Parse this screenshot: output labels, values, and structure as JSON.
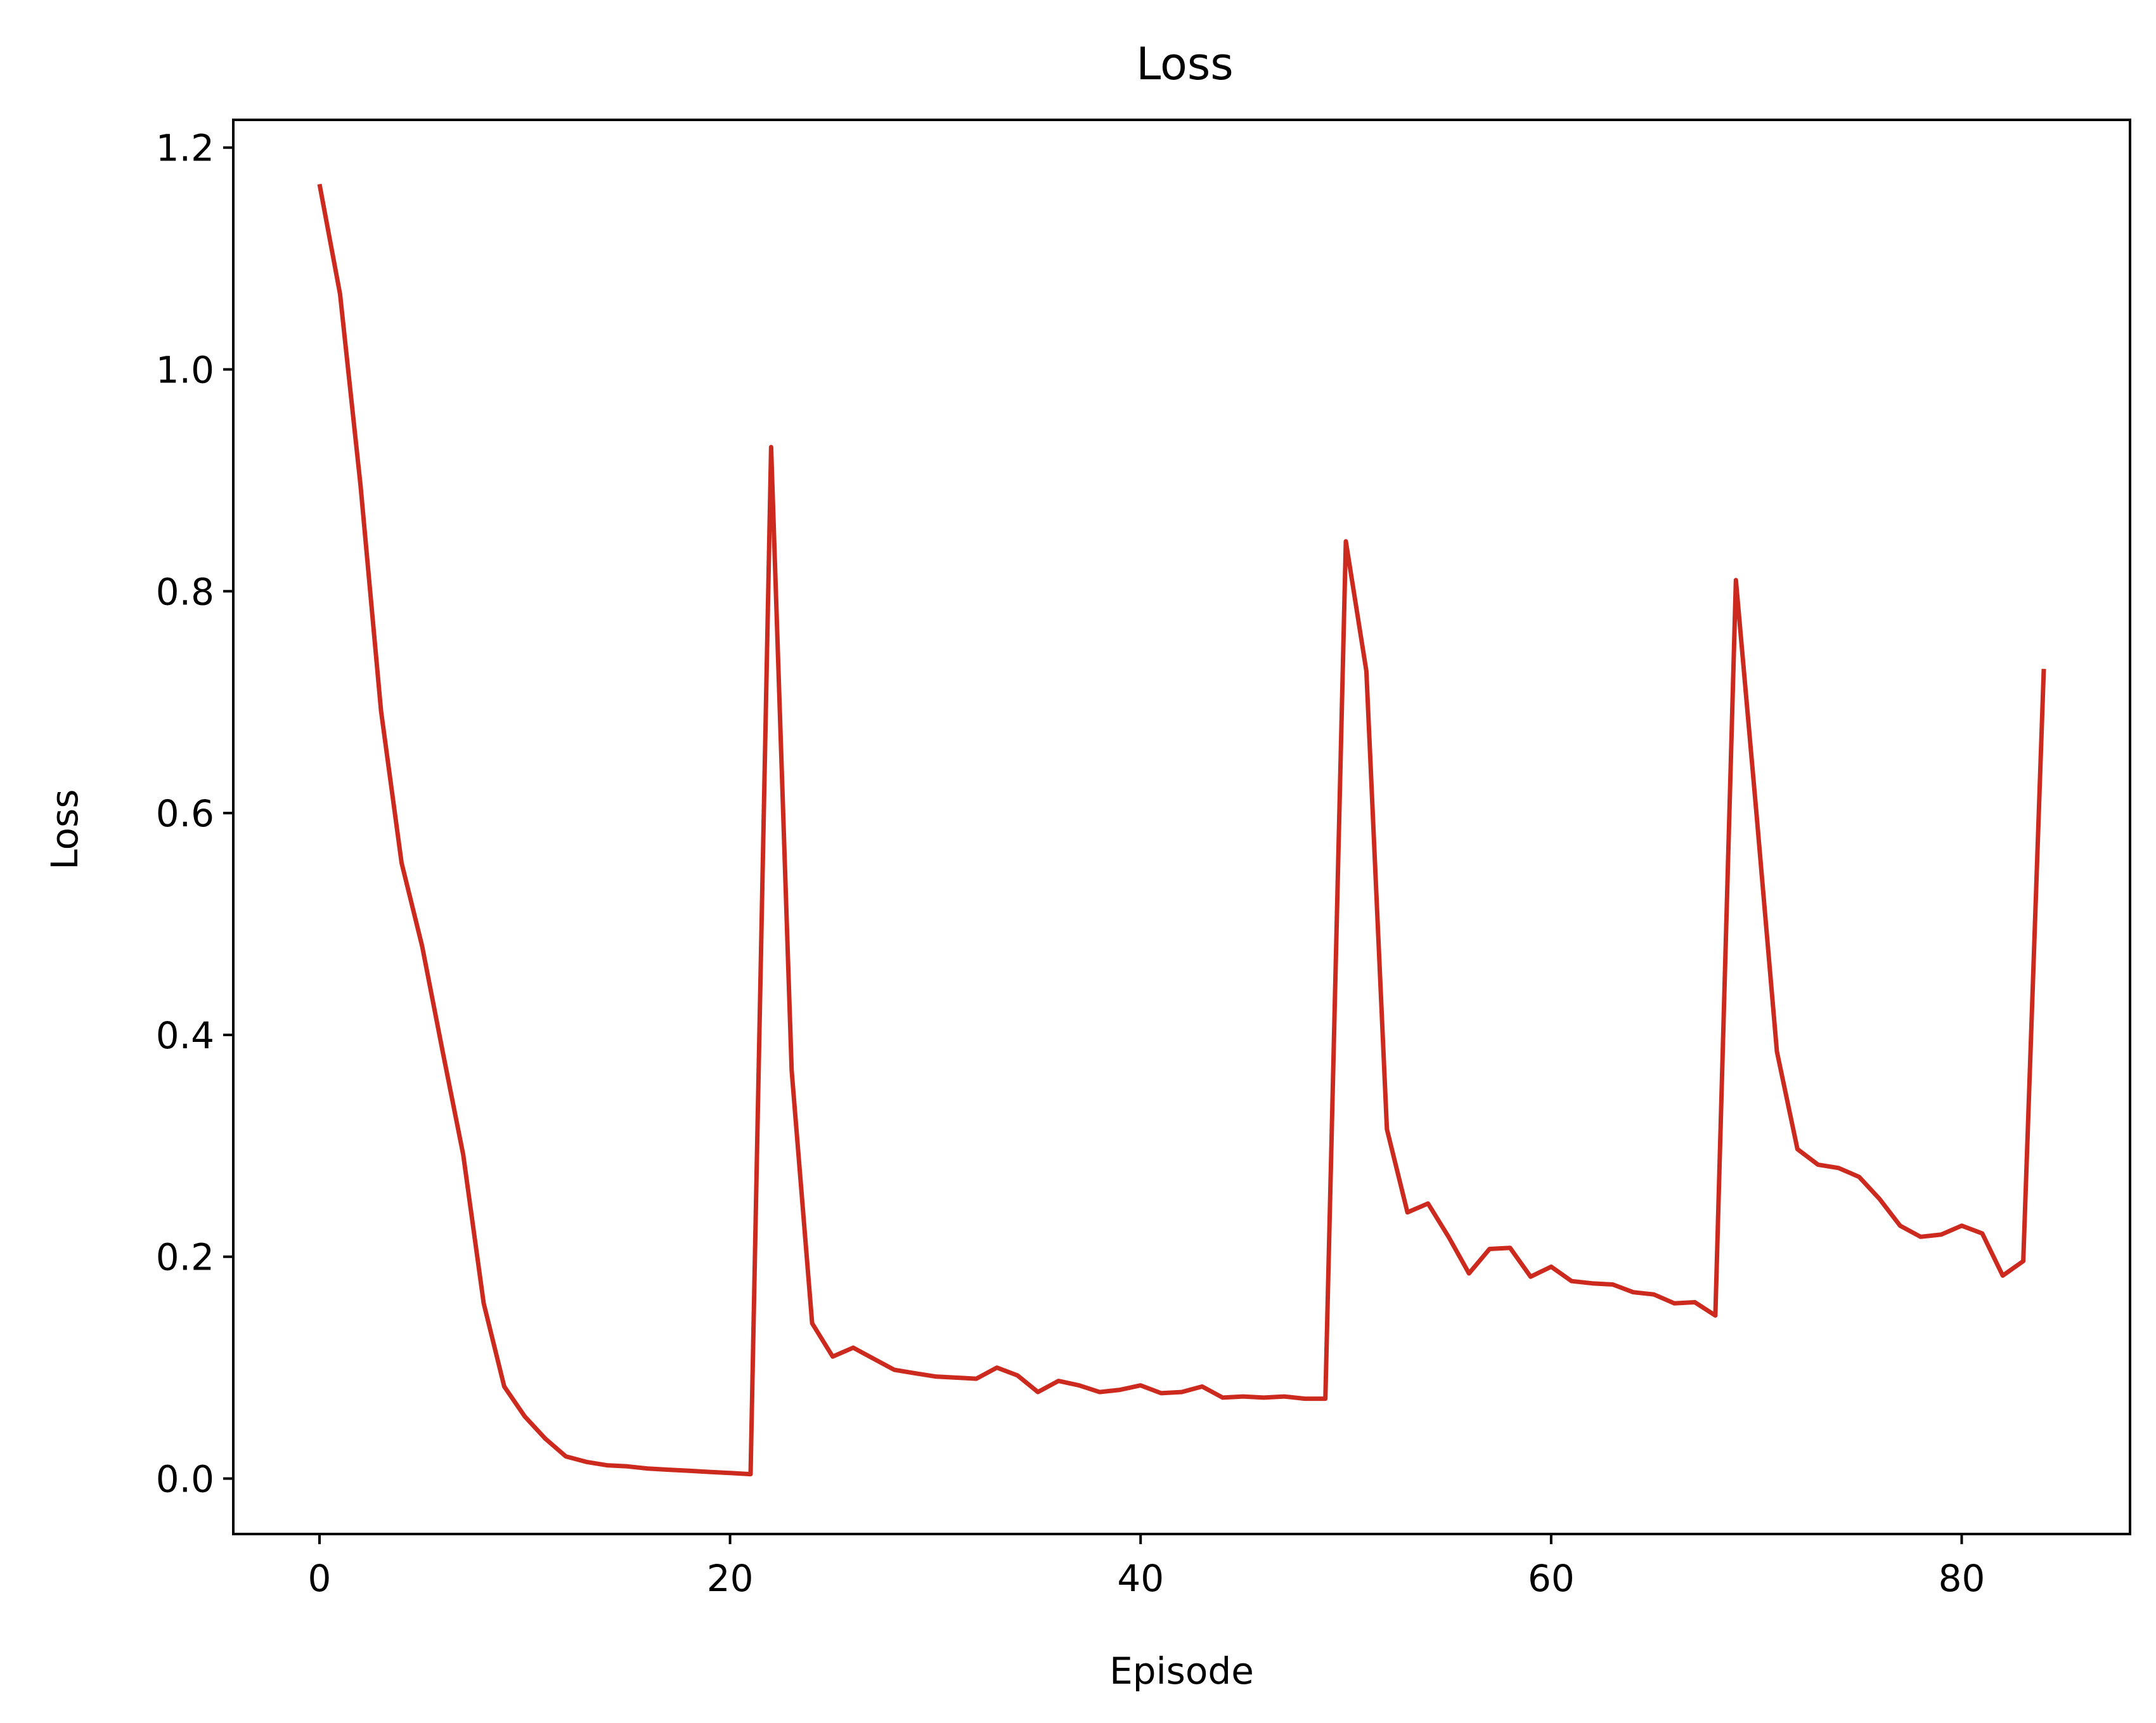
{
  "chart_data": {
    "type": "line",
    "title": "Loss",
    "xlabel": "Episode",
    "ylabel": "Loss",
    "xlim": [
      -4.2,
      88.2
    ],
    "ylim": [
      -0.05,
      1.225
    ],
    "xticks": [
      0,
      20,
      40,
      60,
      80
    ],
    "yticks": [
      0.0,
      0.2,
      0.4,
      0.6,
      0.8,
      1.0,
      1.2
    ],
    "xtick_labels": [
      "0",
      "20",
      "40",
      "60",
      "80"
    ],
    "ytick_labels": [
      "0.0",
      "0.2",
      "0.4",
      "0.6",
      "0.8",
      "1.0",
      "1.2"
    ],
    "grid": false,
    "line_color": "#cc2a1e",
    "series": [
      {
        "x": [
          0,
          1,
          2,
          3,
          4,
          5,
          6,
          7,
          8,
          9,
          10,
          11,
          12,
          13,
          14,
          15,
          16,
          17,
          18,
          19,
          20,
          21,
          22,
          23,
          24,
          25,
          26,
          27,
          28,
          29,
          30,
          31,
          32,
          33,
          34,
          35,
          36,
          37,
          38,
          39,
          40,
          41,
          42,
          43,
          44,
          45,
          46,
          47,
          48,
          49,
          50,
          51,
          52,
          53,
          54,
          55,
          56,
          57,
          58,
          59,
          60,
          61,
          62,
          63,
          64,
          65,
          66,
          67,
          68,
          69,
          70,
          71,
          72,
          73,
          74,
          75,
          76,
          77,
          78,
          79,
          80,
          81,
          82,
          83,
          84
        ],
        "values": [
          1.167,
          1.068,
          0.895,
          0.692,
          0.555,
          0.48,
          0.385,
          0.292,
          0.158,
          0.083,
          0.056,
          0.036,
          0.02,
          0.015,
          0.012,
          0.011,
          0.009,
          0.008,
          0.007,
          0.006,
          0.005,
          0.004,
          0.93,
          0.368,
          0.14,
          0.11,
          0.118,
          0.108,
          0.098,
          0.095,
          0.092,
          0.091,
          0.09,
          0.1,
          0.093,
          0.078,
          0.088,
          0.084,
          0.078,
          0.08,
          0.084,
          0.077,
          0.078,
          0.083,
          0.073,
          0.074,
          0.073,
          0.074,
          0.072,
          0.072,
          0.845,
          0.728,
          0.315,
          0.24,
          0.248,
          0.218,
          0.185,
          0.207,
          0.208,
          0.182,
          0.191,
          0.178,
          0.176,
          0.175,
          0.168,
          0.166,
          0.158,
          0.159,
          0.147,
          0.81,
          0.6,
          0.385,
          0.297,
          0.283,
          0.28,
          0.272,
          0.252,
          0.228,
          0.218,
          0.22,
          0.228,
          0.221,
          0.183,
          0.196,
          0.73
        ]
      }
    ]
  }
}
